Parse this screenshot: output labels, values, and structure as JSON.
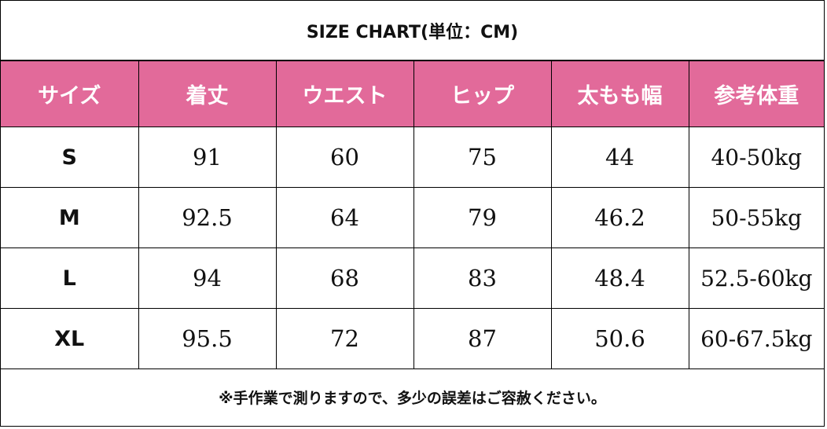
{
  "title": "SIZE CHART(単位：CM)",
  "table": {
    "headers": [
      "サイズ",
      "着丈",
      "ウエスト",
      "ヒップ",
      "太もも幅",
      "参考体重"
    ],
    "rows": [
      {
        "size": "S",
        "values": [
          "91",
          "60",
          "75",
          "44",
          "40-50kg"
        ]
      },
      {
        "size": "M",
        "values": [
          "92.5",
          "64",
          "79",
          "46.2",
          "50-55kg"
        ]
      },
      {
        "size": "L",
        "values": [
          "94",
          "68",
          "83",
          "48.4",
          "52.5-60kg"
        ]
      },
      {
        "size": "XL",
        "values": [
          "95.5",
          "72",
          "87",
          "50.6",
          "60-67.5kg"
        ]
      }
    ]
  },
  "note": "※手作業で測りますので、多少の誤差はご容赦ください。",
  "colors": {
    "header_bg": "#e26a9a",
    "header_text": "#ffffff",
    "border": "#000000"
  }
}
